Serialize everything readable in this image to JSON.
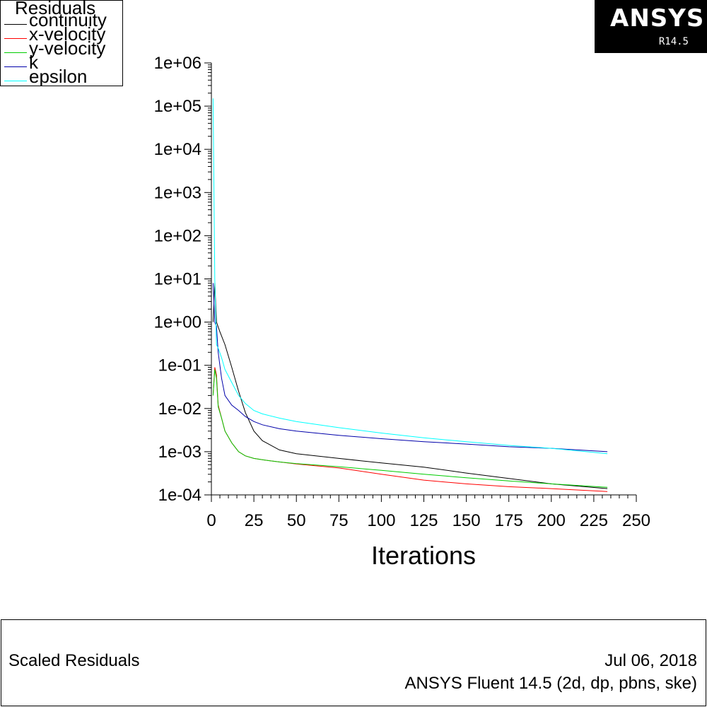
{
  "legend": {
    "title": "Residuals"
  },
  "logo": {
    "name": "ANSYS",
    "version": "R14.5"
  },
  "footer": {
    "title": "Scaled Residuals",
    "date": "Jul 06, 2018",
    "product": "ANSYS Fluent 14.5 (2d, dp, pbns, ske)"
  },
  "chart_data": {
    "type": "line",
    "title": "Residuals",
    "xlabel": "Iterations",
    "ylabel": "",
    "xlim": [
      0,
      250
    ],
    "ylim": [
      0.0001,
      1000000
    ],
    "y_scale": "log",
    "x_ticks": [
      "0",
      "25",
      "50",
      "75",
      "100",
      "125",
      "150",
      "175",
      "200",
      "225",
      "250"
    ],
    "y_ticks": [
      "1e-04",
      "1e-03",
      "1e-02",
      "1e-01",
      "1e+00",
      "1e+01",
      "1e+02",
      "1e+03",
      "1e+04",
      "1e+05",
      "1e+06"
    ],
    "grid": false,
    "legend_position": "top-left",
    "series": [
      {
        "name": "continuity",
        "color": "#000000",
        "x": [
          1,
          2,
          3,
          5,
          8,
          12,
          16,
          20,
          25,
          30,
          40,
          50,
          75,
          100,
          125,
          150,
          175,
          200,
          233
        ],
        "y": [
          1,
          8,
          1,
          0.6,
          0.3,
          0.09,
          0.025,
          0.008,
          0.003,
          0.0018,
          0.0011,
          0.0009,
          0.0007,
          0.00055,
          0.00044,
          0.00032,
          0.00024,
          0.00018,
          0.00014
        ]
      },
      {
        "name": "x-velocity",
        "color": "#ff0000",
        "x": [
          1,
          2,
          3,
          4,
          6,
          8,
          12,
          16,
          20,
          25,
          30,
          40,
          50,
          75,
          100,
          125,
          150,
          175,
          200,
          233
        ],
        "y": [
          0.02,
          0.09,
          0.06,
          0.012,
          0.006,
          0.003,
          0.0016,
          0.001,
          0.0008,
          0.0007,
          0.00065,
          0.00058,
          0.00052,
          0.00042,
          0.0003,
          0.00022,
          0.00018,
          0.000155,
          0.00014,
          0.00012
        ]
      },
      {
        "name": "y-velocity",
        "color": "#00cc00",
        "x": [
          1,
          2,
          3,
          4,
          6,
          8,
          12,
          16,
          20,
          25,
          30,
          40,
          50,
          75,
          100,
          125,
          150,
          175,
          200,
          233
        ],
        "y": [
          0.02,
          0.08,
          0.05,
          0.011,
          0.006,
          0.003,
          0.0016,
          0.001,
          0.0008,
          0.0007,
          0.00065,
          0.00058,
          0.00053,
          0.00045,
          0.00037,
          0.0003,
          0.00025,
          0.00021,
          0.00018,
          0.00015
        ]
      },
      {
        "name": "k",
        "color": "#0000aa",
        "x": [
          1,
          2,
          3,
          4,
          6,
          8,
          12,
          16,
          20,
          25,
          30,
          40,
          50,
          75,
          100,
          125,
          150,
          175,
          200,
          233
        ],
        "y": [
          8,
          1,
          0.8,
          0.2,
          0.05,
          0.02,
          0.012,
          0.009,
          0.0065,
          0.005,
          0.0042,
          0.0034,
          0.003,
          0.0024,
          0.002,
          0.0017,
          0.0015,
          0.0013,
          0.0012,
          0.001
        ]
      },
      {
        "name": "epsilon",
        "color": "#00ffff",
        "x": [
          1,
          2,
          3,
          4,
          6,
          8,
          12,
          16,
          20,
          25,
          30,
          40,
          50,
          75,
          100,
          125,
          150,
          175,
          200,
          233
        ],
        "y": [
          150000,
          10,
          0.3,
          0.25,
          0.15,
          0.08,
          0.04,
          0.02,
          0.013,
          0.009,
          0.0075,
          0.006,
          0.005,
          0.0036,
          0.0027,
          0.0021,
          0.0017,
          0.0014,
          0.0012,
          0.0009
        ]
      }
    ]
  }
}
